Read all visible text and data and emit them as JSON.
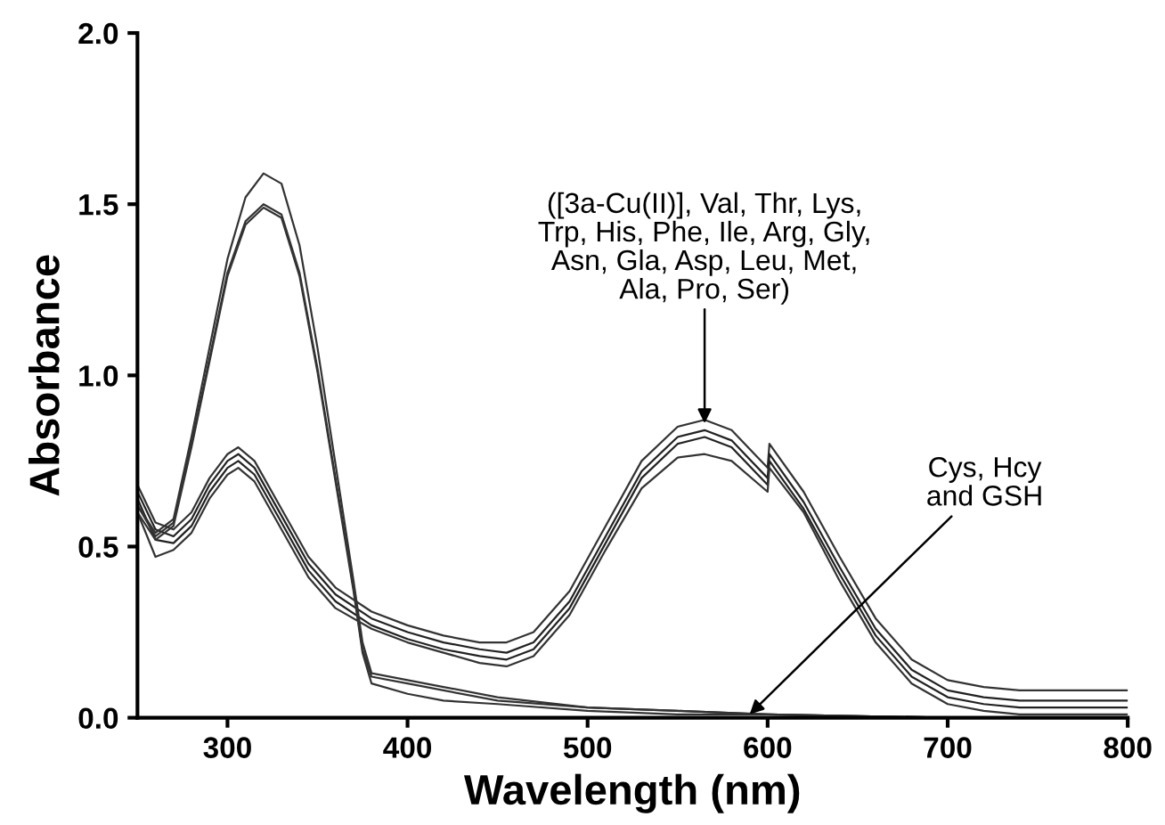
{
  "chart_data": {
    "type": "line",
    "xlabel": "Wavelength (nm)",
    "ylabel": "Absorbance",
    "x": [
      250,
      260,
      270,
      280,
      290,
      300,
      306,
      315,
      330,
      345,
      360,
      380,
      400,
      420,
      440,
      455,
      470,
      490,
      510,
      530,
      550,
      565,
      580,
      600,
      601,
      620,
      640,
      660,
      680,
      700,
      720,
      740,
      760,
      800
    ],
    "series": [
      {
        "color": "#333333",
        "values": [
          0.68,
          0.57,
          0.55,
          0.6,
          0.7,
          0.77,
          0.79,
          0.75,
          0.61,
          0.47,
          0.38,
          0.31,
          0.27,
          0.24,
          0.22,
          0.22,
          0.25,
          0.37,
          0.56,
          0.75,
          0.85,
          0.87,
          0.84,
          0.73,
          0.8,
          0.66,
          0.47,
          0.29,
          0.17,
          0.11,
          0.09,
          0.08,
          0.08,
          0.08
        ]
      },
      {
        "color": "#222222",
        "values": [
          0.66,
          0.55,
          0.53,
          0.58,
          0.68,
          0.75,
          0.77,
          0.73,
          0.59,
          0.45,
          0.36,
          0.29,
          0.25,
          0.22,
          0.2,
          0.19,
          0.22,
          0.34,
          0.53,
          0.72,
          0.82,
          0.84,
          0.81,
          0.7,
          0.77,
          0.63,
          0.44,
          0.26,
          0.14,
          0.08,
          0.06,
          0.05,
          0.05,
          0.05
        ]
      },
      {
        "color": "#222222",
        "values": [
          0.64,
          0.52,
          0.51,
          0.56,
          0.66,
          0.73,
          0.75,
          0.71,
          0.57,
          0.43,
          0.34,
          0.27,
          0.23,
          0.2,
          0.18,
          0.17,
          0.2,
          0.32,
          0.51,
          0.7,
          0.8,
          0.82,
          0.79,
          0.68,
          0.75,
          0.61,
          0.42,
          0.24,
          0.12,
          0.06,
          0.04,
          0.03,
          0.03,
          0.03
        ]
      },
      {
        "color": "#333333",
        "values": [
          0.6,
          0.47,
          0.49,
          0.54,
          0.64,
          0.71,
          0.73,
          0.69,
          0.55,
          0.41,
          0.32,
          0.26,
          0.22,
          0.19,
          0.16,
          0.15,
          0.18,
          0.3,
          0.49,
          0.67,
          0.76,
          0.77,
          0.75,
          0.66,
          0.73,
          0.6,
          0.4,
          0.22,
          0.1,
          0.04,
          0.02,
          0.01,
          0.01,
          0.01
        ]
      },
      {
        "color": "#333333",
        "x": [
          250,
          260,
          270,
          280,
          290,
          300,
          310,
          320,
          330,
          340,
          350,
          360,
          370,
          375,
          380,
          400,
          420,
          450,
          500,
          550,
          600,
          700,
          800
        ],
        "values": [
          0.62,
          0.54,
          0.58,
          0.82,
          1.08,
          1.34,
          1.52,
          1.59,
          1.56,
          1.38,
          1.08,
          0.74,
          0.4,
          0.22,
          0.13,
          0.11,
          0.09,
          0.06,
          0.03,
          0.02,
          0.01,
          0.0,
          0.0
        ]
      },
      {
        "color": "#333333",
        "x": [
          250,
          260,
          270,
          280,
          290,
          300,
          310,
          320,
          330,
          340,
          350,
          360,
          370,
          375,
          380,
          400,
          420,
          450,
          500,
          550,
          600,
          700,
          800
        ],
        "values": [
          0.62,
          0.53,
          0.57,
          0.8,
          1.05,
          1.3,
          1.45,
          1.5,
          1.47,
          1.3,
          1.02,
          0.7,
          0.38,
          0.2,
          0.12,
          0.1,
          0.08,
          0.05,
          0.03,
          0.02,
          0.01,
          0.0,
          0.0
        ]
      },
      {
        "color": "#333333",
        "x": [
          250,
          260,
          270,
          280,
          290,
          300,
          310,
          320,
          330,
          340,
          350,
          360,
          370,
          375,
          380,
          400,
          420,
          450,
          500,
          550,
          600,
          700,
          800
        ],
        "values": [
          0.6,
          0.52,
          0.56,
          0.79,
          1.04,
          1.29,
          1.44,
          1.49,
          1.46,
          1.29,
          1.01,
          0.69,
          0.37,
          0.19,
          0.1,
          0.07,
          0.05,
          0.04,
          0.02,
          0.01,
          0.01,
          0.0,
          0.0
        ]
      }
    ],
    "xlim": [
      250,
      800
    ],
    "xticks": [
      300,
      400,
      500,
      600,
      700,
      800
    ],
    "ylim": [
      0,
      2.0
    ],
    "yticks": [
      {
        "value": 0,
        "label": "0.0"
      },
      {
        "value": 0.5,
        "label": "0.5"
      },
      {
        "value": 1.0,
        "label": "1.0"
      },
      {
        "value": 1.5,
        "label": "1.5"
      },
      {
        "value": 2.0,
        "label": "2.0"
      }
    ],
    "annotations": [
      {
        "text": "([3a-Cu(II)], Val, Thr, Lys,\nTrp, His, Phe, Ile, Arg, Gly,\nAsn, Gla, Asp, Leu, Met,\nAla, Pro, Ser)",
        "x": 565,
        "y": 0.86
      },
      {
        "text": "Cys, Hcy\nand GSH",
        "x": 590,
        "y": 0.01
      }
    ],
    "grid": false
  }
}
